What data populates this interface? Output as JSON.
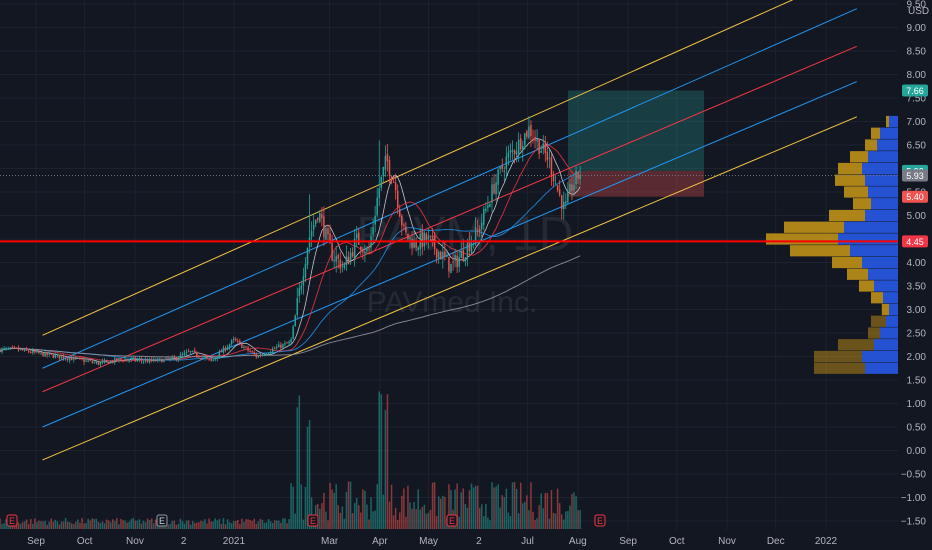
{
  "watermark": {
    "symbol": "PAVM, 1D",
    "name": "PAVmed Inc."
  },
  "colors": {
    "background": "#131722",
    "up": "#26a69a",
    "down": "#ef5350",
    "channel_outer": "#f5c542",
    "channel_mid": "#2196f3",
    "channel_center": "#f23645",
    "support": "#ff0000",
    "vp_up": "#2962ff",
    "vp_down": "#d4a017"
  },
  "axis": {
    "currency": "USD",
    "y_ticks": [
      "9.50",
      "9.00",
      "8.50",
      "8.00",
      "7.50",
      "7.00",
      "6.50",
      "6.00",
      "5.50",
      "5.00",
      "4.50",
      "4.00",
      "3.50",
      "3.00",
      "2.50",
      "2.00",
      "1.50",
      "1.00",
      "0.50",
      "0.00",
      "−0.50",
      "−1.00",
      "−1.50"
    ],
    "x_ticks": [
      "Sep",
      "Oct",
      "Nov",
      "2",
      "2021",
      "Mar",
      "Apr",
      "May",
      "2",
      "Jul",
      "Aug",
      "Sep",
      "Oct",
      "Nov",
      "Dec",
      "2022"
    ]
  },
  "price_tags": [
    {
      "label": "7.66",
      "value": 7.66,
      "color": "#26a69a"
    },
    {
      "label": "5.93",
      "value": 5.95,
      "color": "#26a69a"
    },
    {
      "label": "5.93",
      "value": 5.85,
      "color": "#787b86"
    },
    {
      "label": "5.40",
      "value": 5.4,
      "color": "#ef5350"
    },
    {
      "label": "4.45",
      "value": 4.45,
      "color": "#f23645"
    }
  ],
  "event_markers": [
    "E",
    "E",
    "E",
    "E",
    "E"
  ],
  "chart_data": {
    "type": "candlestick",
    "symbol": "PAVM",
    "interval": "1D",
    "ylim": [
      -1.6,
      9.6
    ],
    "support_level": 4.45,
    "long_position": {
      "entry": 5.95,
      "target": 7.66,
      "stop": 5.4
    },
    "price_path": [
      [
        "2020-08-20",
        2.15
      ],
      [
        "2020-09-05",
        2.05
      ],
      [
        "2020-09-25",
        1.95
      ],
      [
        "2020-10-10",
        1.85
      ],
      [
        "2020-10-25",
        1.95
      ],
      [
        "2020-11-10",
        1.9
      ],
      [
        "2020-11-25",
        1.95
      ],
      [
        "2020-12-05",
        2.1
      ],
      [
        "2020-12-18",
        1.9
      ],
      [
        "2021-01-01",
        2.35
      ],
      [
        "2021-01-15",
        2.0
      ],
      [
        "2021-01-28",
        2.2
      ],
      [
        "2021-02-05",
        2.3
      ],
      [
        "2021-02-10",
        3.3
      ],
      [
        "2021-02-16",
        4.5
      ],
      [
        "2021-02-22",
        5.1
      ],
      [
        "2021-03-02",
        4.2
      ],
      [
        "2021-03-10",
        3.9
      ],
      [
        "2021-03-18",
        4.5
      ],
      [
        "2021-03-25",
        4.2
      ],
      [
        "2021-03-31",
        5.5
      ],
      [
        "2021-04-05",
        6.2
      ],
      [
        "2021-04-10",
        5.7
      ],
      [
        "2021-04-16",
        4.6
      ],
      [
        "2021-04-23",
        4.4
      ],
      [
        "2021-04-30",
        4.5
      ],
      [
        "2021-05-08",
        4.2
      ],
      [
        "2021-05-15",
        3.9
      ],
      [
        "2021-05-22",
        4.2
      ],
      [
        "2021-06-01",
        4.7
      ],
      [
        "2021-06-10",
        5.6
      ],
      [
        "2021-06-18",
        6.2
      ],
      [
        "2021-06-25",
        6.5
      ],
      [
        "2021-07-02",
        6.85
      ],
      [
        "2021-07-08",
        6.5
      ],
      [
        "2021-07-14",
        6.2
      ],
      [
        "2021-07-20",
        5.5
      ],
      [
        "2021-07-24",
        5.1
      ],
      [
        "2021-07-28",
        5.6
      ],
      [
        "2021-08-03",
        5.95
      ]
    ],
    "channel": {
      "outer_upper": [
        [
          "2020-09-05",
          2.45
        ],
        [
          "2022-01-20",
          10.2
        ]
      ],
      "mid_upper": [
        [
          "2020-09-05",
          1.75
        ],
        [
          "2022-01-20",
          9.4
        ]
      ],
      "center": [
        [
          "2020-09-05",
          1.25
        ],
        [
          "2022-01-20",
          8.6
        ]
      ],
      "mid_lower": [
        [
          "2020-09-05",
          0.5
        ],
        [
          "2022-01-20",
          7.85
        ]
      ],
      "outer_lower": [
        [
          "2020-09-05",
          -0.2
        ],
        [
          "2022-01-20",
          7.1
        ]
      ]
    },
    "volume_profile": [
      {
        "price": 7.0,
        "up": 0.15,
        "down": 0.05
      },
      {
        "price": 6.75,
        "up": 0.3,
        "down": 0.15
      },
      {
        "price": 6.5,
        "up": 0.35,
        "down": 0.2
      },
      {
        "price": 6.25,
        "up": 0.5,
        "down": 0.3
      },
      {
        "price": 6.0,
        "up": 0.6,
        "down": 0.4
      },
      {
        "price": 5.75,
        "up": 0.55,
        "down": 0.5
      },
      {
        "price": 5.5,
        "up": 0.5,
        "down": 0.4
      },
      {
        "price": 5.25,
        "up": 0.45,
        "down": 0.3
      },
      {
        "price": 5.0,
        "up": 0.55,
        "down": 0.6
      },
      {
        "price": 4.75,
        "up": 0.9,
        "down": 1.0
      },
      {
        "price": 4.5,
        "up": 1.0,
        "down": 1.2
      },
      {
        "price": 4.25,
        "up": 0.8,
        "down": 1.0
      },
      {
        "price": 4.0,
        "up": 0.6,
        "down": 0.5
      },
      {
        "price": 3.75,
        "up": 0.5,
        "down": 0.35
      },
      {
        "price": 3.5,
        "up": 0.4,
        "down": 0.25
      },
      {
        "price": 3.25,
        "up": 0.25,
        "down": 0.2
      },
      {
        "price": 3.0,
        "up": 0.15,
        "down": 0.12
      },
      {
        "price": 2.75,
        "up": 0.2,
        "down": 0.25
      },
      {
        "price": 2.5,
        "up": 0.3,
        "down": 0.2
      },
      {
        "price": 2.25,
        "up": 0.4,
        "down": 0.6
      },
      {
        "price": 2.0,
        "up": 0.6,
        "down": 0.8
      },
      {
        "price": 1.75,
        "up": 0.55,
        "down": 0.85
      }
    ],
    "volume_spikes": [
      [
        "2021-02-10",
        1.0
      ],
      [
        "2021-02-16",
        0.85
      ],
      [
        "2021-04-01",
        1.0
      ],
      [
        "2021-04-05",
        1.0
      ]
    ]
  }
}
